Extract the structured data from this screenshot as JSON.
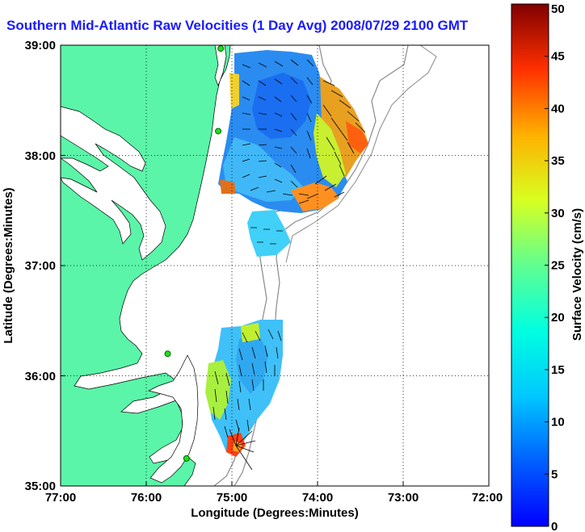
{
  "title": "Southern Mid-Atlantic Raw Velocities (1 Day Avg) 2008/07/29 2100 GMT",
  "map": {
    "lon_range": [
      -77,
      -72
    ],
    "lat_range": [
      35,
      39
    ],
    "xlabel": "Longitude (Degrees:Minutes)",
    "ylabel": "Latitude (Degrees:Minutes)",
    "x_ticks": [
      "77:00",
      "76:00",
      "75:00",
      "74:00",
      "73:00",
      "72:00"
    ],
    "y_ticks": [
      "39:00",
      "38:00",
      "37:00",
      "36:00",
      "35:00"
    ],
    "land_color": "#5af5a8",
    "grid": true
  },
  "colorbar": {
    "label": "Surface Velocity (cm/s)",
    "ticks": [
      "50",
      "45",
      "40",
      "35",
      "30",
      "25",
      "20",
      "15",
      "10",
      "5",
      "0"
    ],
    "range": [
      0,
      50
    ]
  },
  "stations": [
    {
      "lon": -75.13,
      "lat": 38.97
    },
    {
      "lon": -75.16,
      "lat": 38.22
    },
    {
      "lon": -75.75,
      "lat": 36.2
    },
    {
      "lon": -75.53,
      "lat": 35.25
    }
  ]
}
